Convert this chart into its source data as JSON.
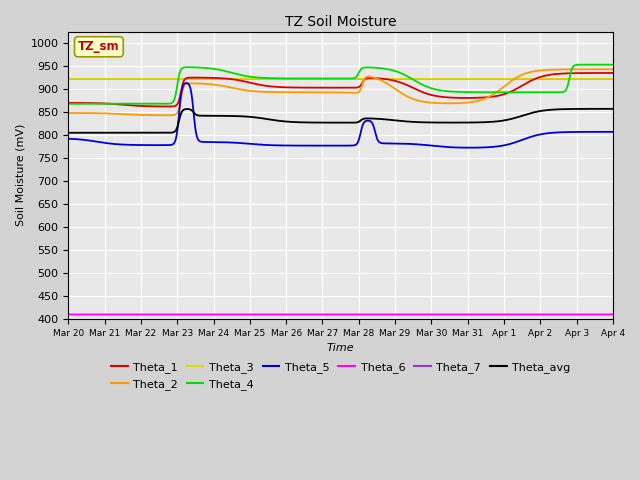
{
  "title": "TZ Soil Moisture",
  "xlabel": "Time",
  "ylabel": "Soil Moisture (mV)",
  "ylim": [
    400,
    1025
  ],
  "yticks": [
    400,
    450,
    500,
    550,
    600,
    650,
    700,
    750,
    800,
    850,
    900,
    950,
    1000
  ],
  "fig_bg": "#d3d3d3",
  "plot_bg": "#e8e8e8",
  "annotation_text": "TZ_sm",
  "annotation_color": "#cc0000",
  "annotation_bg": "#ffffcc",
  "annotation_edge": "#999900",
  "colors": {
    "Theta_1": "#dd0000",
    "Theta_2": "#ff9900",
    "Theta_3": "#dddd00",
    "Theta_4": "#00dd00",
    "Theta_5": "#0000dd",
    "Theta_6": "#ff00ff",
    "Theta_7": "#9933cc",
    "Theta_avg": "#000000"
  },
  "grid_color": "#ffffff",
  "linewidth": 1.3
}
